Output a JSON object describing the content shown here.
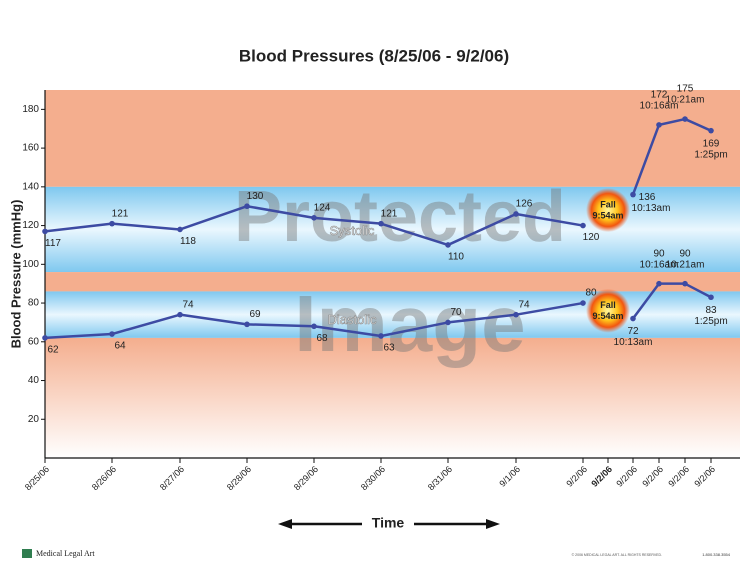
{
  "chart_data": {
    "type": "line",
    "title": "Blood Pressures (8/25/06 - 9/2/06)",
    "y_label": "Blood Pressure (mmHg)",
    "x_label": "Time",
    "categories": [
      "8/25/06",
      "8/26/06",
      "8/27/06",
      "8/28/06",
      "8/29/06",
      "8/30/06",
      "8/31/06",
      "9/1/06",
      "9/2/06",
      "9/2/06",
      "9/2/06",
      "9/2/06",
      "9/2/06",
      "9/2/06"
    ],
    "point_times": [
      null,
      null,
      null,
      null,
      null,
      null,
      null,
      null,
      null,
      null,
      "10:13am",
      "10:16am",
      "10:21am",
      "1:25pm"
    ],
    "series": [
      {
        "name": "Systolic",
        "color": "#3d4ba3",
        "values": [
          117,
          121,
          118,
          130,
          124,
          121,
          110,
          126,
          120,
          null,
          136,
          172,
          175,
          169
        ]
      },
      {
        "name": "Diastolic",
        "color": "#3d4ba3",
        "values": [
          62,
          64,
          74,
          69,
          68,
          63,
          70,
          74,
          80,
          null,
          72,
          90,
          90,
          83
        ]
      }
    ],
    "event": {
      "label": "Fall",
      "time": "9:54am"
    },
    "bands": [
      {
        "from": 140,
        "to": 190,
        "color": "#f4ae8e",
        "fill": "solid"
      },
      {
        "from": 96,
        "to": 140,
        "color": "#7fc8ef",
        "fill": "glow"
      },
      {
        "from": 86,
        "to": 96,
        "color": "#f4ae8e",
        "fill": "solid"
      },
      {
        "from": 62,
        "to": 86,
        "color": "#7fc8ef",
        "fill": "glow"
      },
      {
        "from": 0,
        "to": 62,
        "color": "#f4ae8e",
        "fill": "fade"
      }
    ],
    "ylim": [
      0,
      190
    ],
    "yticks": [
      20,
      40,
      60,
      80,
      100,
      120,
      140,
      160,
      180
    ]
  },
  "watermark": [
    "Protected",
    "Image"
  ],
  "footer": {
    "logo": "Medical Legal Art",
    "copyright": "© 2006 MEDICAL LEGAL ART. ALL RIGHTS RESERVED.",
    "phone": "1.800.338.3554"
  }
}
